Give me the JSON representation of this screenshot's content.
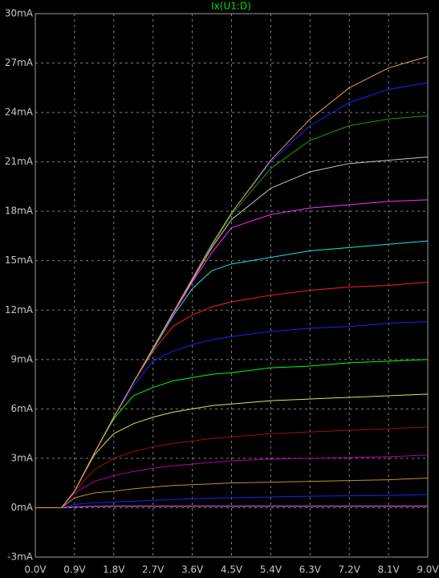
{
  "chart_data": {
    "type": "line",
    "title": "Ix(U1:D)",
    "title_color": "#00e000",
    "x": [
      0,
      0.45,
      0.6,
      0.9,
      1.35,
      1.8,
      2.25,
      2.7,
      3.15,
      3.6,
      4.05,
      4.5,
      5.4,
      6.3,
      7.2,
      8.1,
      9.0
    ],
    "xlim": [
      0,
      9
    ],
    "xticks": [
      {
        "value": 0,
        "label": "0.0V"
      },
      {
        "value": 0.9,
        "label": "0.9V"
      },
      {
        "value": 1.8,
        "label": "1.8V"
      },
      {
        "value": 2.7,
        "label": "2.7V"
      },
      {
        "value": 3.6,
        "label": "3.6V"
      },
      {
        "value": 4.5,
        "label": "4.5V"
      },
      {
        "value": 5.4,
        "label": "5.4V"
      },
      {
        "value": 6.3,
        "label": "6.3V"
      },
      {
        "value": 7.2,
        "label": "7.2V"
      },
      {
        "value": 8.1,
        "label": "8.1V"
      },
      {
        "value": 9.0,
        "label": "9.0V"
      }
    ],
    "ylim": [
      -3,
      30
    ],
    "yticks": [
      {
        "value": -3,
        "label": "-3mA"
      },
      {
        "value": 0,
        "label": "0mA"
      },
      {
        "value": 3,
        "label": "3mA"
      },
      {
        "value": 6,
        "label": "6mA"
      },
      {
        "value": 9,
        "label": "9mA"
      },
      {
        "value": 12,
        "label": "12mA"
      },
      {
        "value": 15,
        "label": "15mA"
      },
      {
        "value": 18,
        "label": "18mA"
      },
      {
        "value": 21,
        "label": "21mA"
      },
      {
        "value": 24,
        "label": "24mA"
      },
      {
        "value": 27,
        "label": "27mA"
      },
      {
        "value": 30,
        "label": "30mA"
      }
    ],
    "grid": true,
    "series": [
      {
        "color": "#ff60ff",
        "values": [
          0,
          0,
          0,
          0.05,
          0.08,
          0.1,
          0.1,
          0.1,
          0.1,
          0.1,
          0.1,
          0.1,
          0.1,
          0.1,
          0.1,
          0.1,
          0.1
        ]
      },
      {
        "color": "#2020ff",
        "values": [
          0,
          0,
          0,
          0.2,
          0.3,
          0.35,
          0.4,
          0.45,
          0.5,
          0.55,
          0.58,
          0.6,
          0.65,
          0.7,
          0.72,
          0.75,
          0.8
        ]
      },
      {
        "color": "#c09030",
        "values": [
          0,
          0,
          0,
          0.6,
          0.9,
          1.0,
          1.15,
          1.25,
          1.35,
          1.4,
          1.45,
          1.5,
          1.55,
          1.6,
          1.65,
          1.7,
          1.8
        ]
      },
      {
        "color": "#b000b0",
        "values": [
          0,
          0,
          0,
          0.9,
          1.6,
          1.95,
          2.2,
          2.4,
          2.55,
          2.65,
          2.75,
          2.85,
          2.95,
          3.0,
          3.05,
          3.1,
          3.2
        ]
      },
      {
        "color": "#a01010",
        "values": [
          0,
          0,
          0,
          1.0,
          2.3,
          3.0,
          3.4,
          3.7,
          3.9,
          4.05,
          4.2,
          4.3,
          4.5,
          4.6,
          4.7,
          4.8,
          4.9
        ]
      },
      {
        "color": "#e0e060",
        "values": [
          0,
          0,
          0,
          1.0,
          3.2,
          4.5,
          5.1,
          5.5,
          5.8,
          6.0,
          6.2,
          6.3,
          6.5,
          6.6,
          6.7,
          6.8,
          6.9
        ]
      },
      {
        "color": "#00ff00",
        "values": [
          0,
          0,
          0,
          1.0,
          3.3,
          5.4,
          6.8,
          7.3,
          7.7,
          7.9,
          8.1,
          8.2,
          8.5,
          8.6,
          8.8,
          8.9,
          9.0
        ]
      },
      {
        "color": "#2020ff",
        "values": [
          0,
          0,
          0,
          1.0,
          3.3,
          5.5,
          7.4,
          8.9,
          9.5,
          9.9,
          10.2,
          10.4,
          10.7,
          10.9,
          11.0,
          11.2,
          11.3
        ]
      },
      {
        "color": "#ff2020",
        "values": [
          0,
          0,
          0,
          1.0,
          3.3,
          5.5,
          7.6,
          9.5,
          11.0,
          11.7,
          12.2,
          12.5,
          12.9,
          13.2,
          13.4,
          13.5,
          13.7
        ]
      },
      {
        "color": "#20e0e0",
        "values": [
          0,
          0,
          0,
          1.0,
          3.3,
          5.5,
          7.6,
          9.6,
          11.6,
          13.3,
          14.4,
          14.8,
          15.2,
          15.6,
          15.8,
          16.0,
          16.2
        ]
      },
      {
        "color": "#ff30ff",
        "values": [
          0,
          0,
          0,
          1.0,
          3.3,
          5.5,
          7.6,
          9.7,
          11.7,
          13.7,
          15.5,
          17.0,
          17.8,
          18.2,
          18.4,
          18.6,
          18.7
        ]
      },
      {
        "color": "#c8c8c8",
        "values": [
          0,
          0,
          0,
          1.0,
          3.3,
          5.5,
          7.6,
          9.7,
          11.8,
          13.8,
          15.8,
          17.5,
          19.4,
          20.4,
          20.9,
          21.1,
          21.3
        ]
      },
      {
        "color": "#10a010",
        "values": [
          0,
          0,
          0,
          1.0,
          3.3,
          5.5,
          7.6,
          9.7,
          11.8,
          13.9,
          15.9,
          17.8,
          20.6,
          22.3,
          23.2,
          23.6,
          23.8
        ]
      },
      {
        "color": "#2020ff",
        "values": [
          0,
          0,
          0,
          1.0,
          3.3,
          5.5,
          7.6,
          9.7,
          11.8,
          13.9,
          16.0,
          17.9,
          21.0,
          23.2,
          24.6,
          25.4,
          25.8
        ]
      },
      {
        "color": "#f0a040",
        "values": [
          0,
          0,
          0,
          1.0,
          3.3,
          5.5,
          7.6,
          9.7,
          11.8,
          13.9,
          16.0,
          17.9,
          21.1,
          23.6,
          25.5,
          26.7,
          27.4
        ]
      }
    ]
  }
}
